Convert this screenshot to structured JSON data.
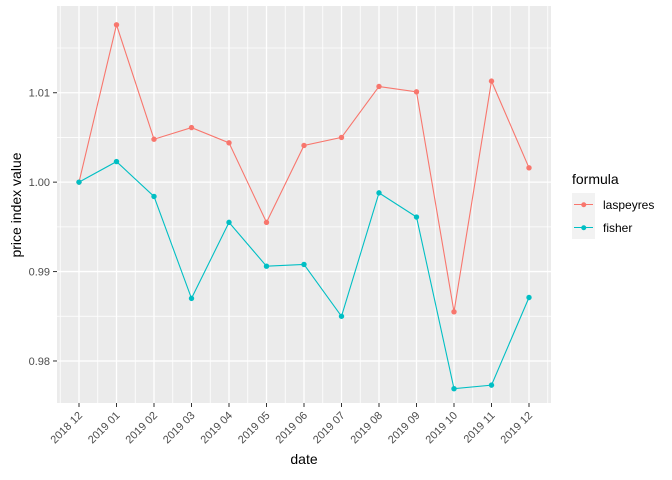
{
  "chart_data": {
    "type": "line",
    "title": "",
    "xlabel": "date",
    "ylabel": "price index value",
    "legend_title": "formula",
    "legend_position": "right",
    "categories": [
      "2018 12",
      "2019 01",
      "2019 02",
      "2019 03",
      "2019 04",
      "2019 05",
      "2019 06",
      "2019 07",
      "2019 08",
      "2019 09",
      "2019 10",
      "2019 11",
      "2019 12"
    ],
    "series": [
      {
        "name": "laspeyres",
        "color": "#F8766D",
        "values": [
          1.0,
          1.0176,
          1.0048,
          1.0061,
          1.0044,
          0.9955,
          1.0041,
          1.005,
          1.0107,
          1.0101,
          0.9855,
          1.0113,
          1.0016
        ]
      },
      {
        "name": "fisher",
        "color": "#00BFC4",
        "values": [
          1.0,
          1.0023,
          0.9984,
          0.987,
          0.9955,
          0.9906,
          0.9908,
          0.985,
          0.9988,
          0.9961,
          0.9769,
          0.9773,
          0.9871
        ]
      }
    ],
    "y_ticks": [
      0.98,
      0.99,
      1.0,
      1.01
    ],
    "y_tick_labels": [
      "0.98",
      "0.99",
      "1.00",
      "1.01"
    ],
    "y_minor": [
      0.985,
      0.995,
      1.005,
      1.015
    ],
    "ylim": [
      0.9753,
      1.0197
    ],
    "grid": true,
    "colors": {
      "panel_bg": "#EBEBEB",
      "gridline": "#FFFFFF",
      "axis_text": "#4D4D4D",
      "tick_mark": "#333333",
      "legend_key_bg": "#F2F2F2",
      "title_text": "#000000"
    }
  }
}
